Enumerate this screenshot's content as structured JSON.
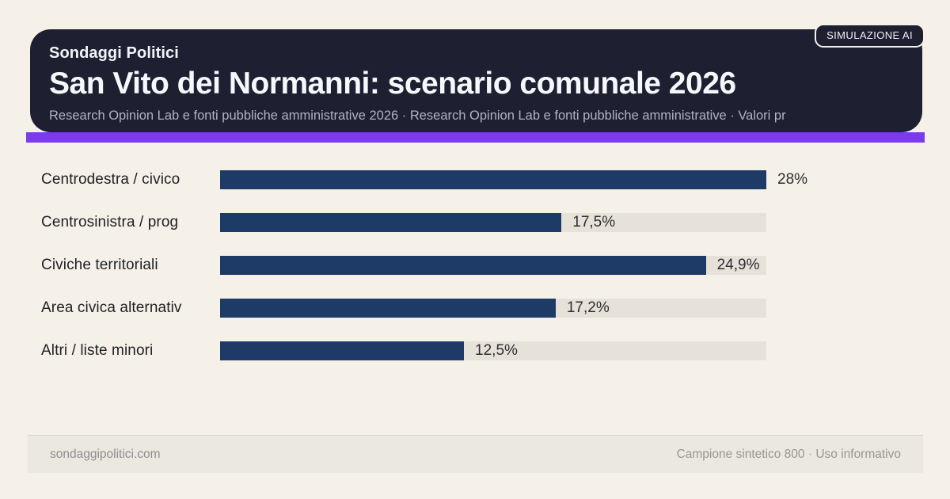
{
  "header": {
    "kicker": "Sondaggi Politici",
    "title": "San Vito dei Normanni: scenario comunale 2026",
    "subtitle": "Research Opinion Lab e fonti pubbliche amministrative 2026 · Research Opinion Lab e fonti pubbliche amministrative · Valori pr"
  },
  "badge": {
    "label": "SIMULAZIONE AI"
  },
  "chart_data": {
    "type": "bar",
    "orientation": "horizontal",
    "categories": [
      "Centrodestra / civico",
      "Centrosinistra / prog",
      "Civiche territoriali",
      "Area civica alternativ",
      "Altri / liste minori"
    ],
    "values": [
      28,
      17.5,
      24.9,
      17.2,
      12.5
    ],
    "value_labels": [
      "28%",
      "17,5%",
      "24,9%",
      "17,2%",
      "12,5%"
    ],
    "xlim": [
      0,
      28
    ],
    "grid": false,
    "legend": false,
    "title": "San Vito dei Normanni: scenario comunale 2026",
    "xlabel": "",
    "ylabel": ""
  },
  "footer": {
    "left": "sondaggipolitici.com",
    "right": "Campione sintetico 800 · Uso informativo"
  },
  "colors": {
    "background": "#f5f1e9",
    "header_bg": "#1e2032",
    "accent_purple": "#7c3aed",
    "bar_navy": "#1e3a66",
    "track_gray": "#e6e2d9",
    "footer_bg": "#ebe8e0"
  }
}
